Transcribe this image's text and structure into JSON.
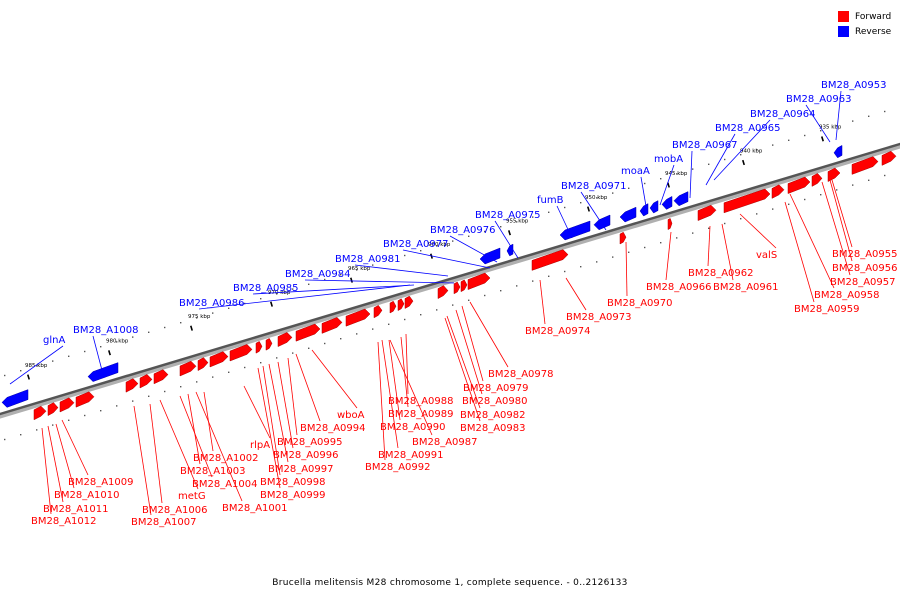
{
  "legend": {
    "forward": {
      "label": "Forward",
      "color": "#ff0000"
    },
    "reverse": {
      "label": "Reverse",
      "color": "#0000ff"
    }
  },
  "caption": "Brucella melitensis M28 chromosome 1, complete sequence. - 0..2126133",
  "axis_ticks": [
    "935 kbp",
    "940 kbp",
    "945 kbp",
    "950 kbp",
    "955 kbp",
    "960 kbp",
    "965 kbp",
    "970 kbp",
    "975 kbp",
    "980 kbp",
    "985 kbp"
  ],
  "reverse_labels": [
    "BM28_A0953",
    "BM28_A0963",
    "BM28_A0964",
    "BM28_A0965",
    "BM28_A0967",
    "mobA",
    "moaA",
    "BM28_A0971",
    "fumB",
    "BM28_A0975",
    "BM28_A0976",
    "BM28_A0977",
    "BM28_A0981",
    "BM28_A0984",
    "BM28_A0985",
    "BM28_A0986",
    "BM28_A1008",
    "glnA"
  ],
  "forward_labels": [
    "BM28_A0955",
    "BM28_A0956",
    "BM28_A0957",
    "BM28_A0958",
    "BM28_A0959",
    "valS",
    "BM28_A0961",
    "BM28_A0962",
    "BM28_A0966",
    "BM28_A0970",
    "BM28_A0973",
    "BM28_A0974",
    "BM28_A0978",
    "BM28_A0979",
    "BM28_A0980",
    "BM28_A0982",
    "BM28_A0983",
    "BM28_A0988",
    "BM28_A0989",
    "BM28_A0990",
    "BM28_A0987",
    "BM28_A0991",
    "BM28_A0992",
    "wboA",
    "BM28_A0994",
    "BM28_A0995",
    "BM28_A0996",
    "BM28_A0997",
    "BM28_A0998",
    "BM28_A0999",
    "rlpA",
    "BM28_A1002",
    "BM28_A1003",
    "BM28_A1004",
    "metG",
    "BM28_A1001",
    "BM28_A1006",
    "BM28_A1007",
    "BM28_A1009",
    "BM28_A1010",
    "BM28_A1011",
    "BM28_A1012"
  ]
}
